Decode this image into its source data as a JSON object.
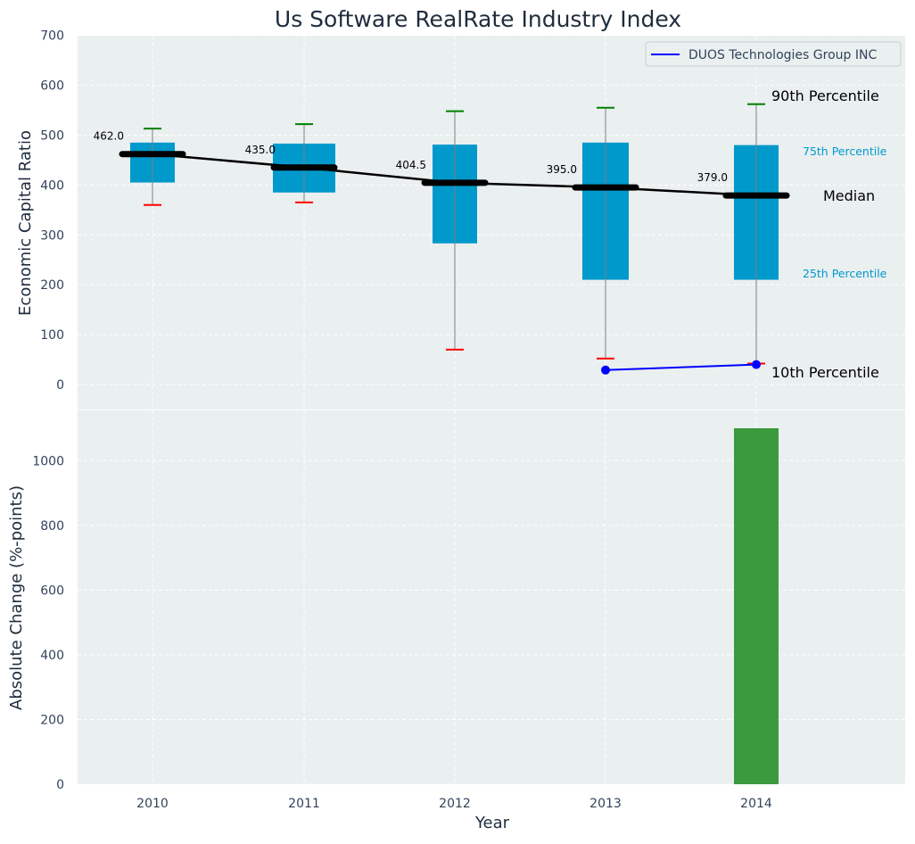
{
  "chart_data": [
    {
      "type": "box",
      "title": "Us Software RealRate Industry Index",
      "ylabel": "Economic Capital Ratio",
      "xlabel": "",
      "ylim": [
        -50,
        700
      ],
      "yticks": [
        0,
        100,
        200,
        300,
        400,
        500,
        600,
        700
      ],
      "grid": true,
      "legend_position": "top-right",
      "categories": [
        "2010",
        "2011",
        "2012",
        "2013",
        "2014"
      ],
      "boxes": [
        {
          "year": "2010",
          "p10": 360,
          "p25": 405,
          "median": 462.0,
          "p75": 485,
          "p90": 513
        },
        {
          "year": "2011",
          "p10": 365,
          "p25": 385,
          "median": 435.0,
          "p75": 483,
          "p90": 522
        },
        {
          "year": "2012",
          "p10": 70,
          "p25": 283,
          "median": 404.5,
          "p75": 481,
          "p90": 548
        },
        {
          "year": "2013",
          "p10": 52,
          "p25": 210,
          "median": 395.0,
          "p75": 485,
          "p90": 555
        },
        {
          "year": "2014",
          "p10": 42,
          "p25": 210,
          "median": 379.0,
          "p75": 480,
          "p90": 562
        }
      ],
      "median_labels": [
        "462.0",
        "435.0",
        "404.5",
        "395.0",
        "379.0"
      ],
      "series": [
        {
          "name": "DUOS Technologies Group INC",
          "x": [
            "2013",
            "2014"
          ],
          "values": [
            29,
            40
          ],
          "color": "#0000ff"
        }
      ],
      "annotations": {
        "p90": "90th Percentile",
        "p75": "75th Percentile",
        "median": "Median",
        "p25": "25th Percentile",
        "p10": "10th Percentile"
      },
      "colors": {
        "box": "#0099cc",
        "median_line": "#000000",
        "p90_cap": "#008000",
        "p10_cap": "#ff0000",
        "whisker": "#808080",
        "panel_bg": "#eaeff0"
      }
    },
    {
      "type": "bar",
      "ylabel": "Absolute Change (%-points)",
      "xlabel": "Year",
      "ylim": [
        0,
        1100
      ],
      "yticks": [
        0,
        200,
        400,
        600,
        800,
        1000
      ],
      "grid": true,
      "categories": [
        "2010",
        "2011",
        "2012",
        "2013",
        "2014"
      ],
      "values": [
        null,
        null,
        null,
        null,
        1100
      ],
      "colors": {
        "bar": "#3a9a3d"
      }
    }
  ]
}
